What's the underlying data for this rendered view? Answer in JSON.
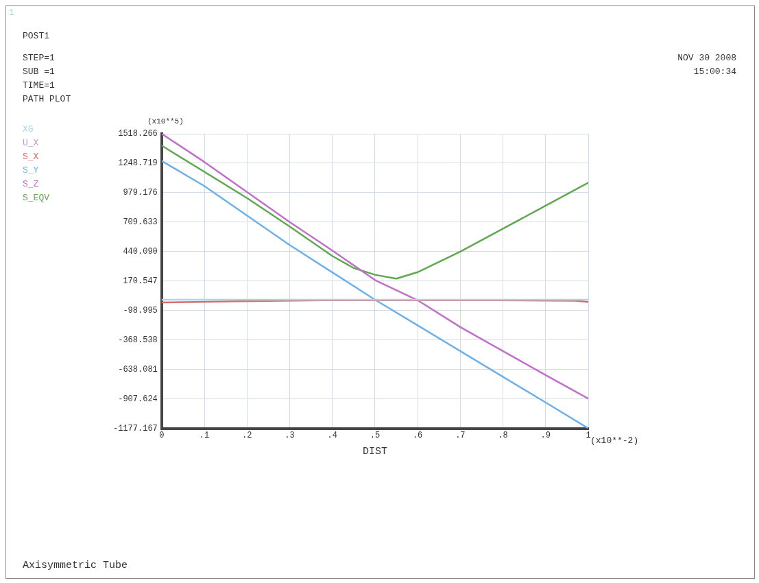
{
  "chart_data": {
    "type": "line",
    "title": "Axisymmetric Tube",
    "xlabel": "DIST",
    "ylabel": "(x10**5)",
    "annotations": [
      "1",
      "POST1",
      "STEP=1",
      "SUB =1",
      "TIME=1",
      "PATH PLOT",
      "NOV 30 2008",
      "15:00:34",
      "(x10**-2)"
    ],
    "x": [
      0,
      0.1,
      0.2,
      0.3,
      0.4,
      0.5,
      0.6,
      0.7,
      0.8,
      0.9,
      1
    ],
    "series": [
      {
        "name": "XG",
        "color": "#a8d8e8",
        "x": [
          0,
          1
        ],
        "values": [
          0,
          0
        ]
      },
      {
        "name": "U_X",
        "color": "#b89ad0",
        "values": [
          null,
          null,
          null,
          null,
          null,
          null,
          null,
          null,
          null,
          null,
          null
        ]
      },
      {
        "name": "S_X",
        "color": "#e06868",
        "x": [
          0,
          0.18,
          0.38,
          0.78,
          0.97,
          1
        ],
        "values": [
          -25,
          -15,
          -5,
          -5,
          -10,
          -20
        ]
      },
      {
        "name": "S_Y",
        "color": "#70b0e8",
        "values": [
          1270,
          1040,
          770,
          500,
          250,
          0,
          -235,
          -470,
          -705,
          -940,
          -1177
        ]
      },
      {
        "name": "S_Z",
        "color": "#c070c8",
        "values": [
          1518,
          1260,
          985,
          710,
          450,
          180,
          -5,
          -250,
          -470,
          -690,
          -905
        ]
      },
      {
        "name": "S_EQV",
        "color": "#60a850",
        "x": [
          0,
          0.1,
          0.2,
          0.3,
          0.4,
          0.45,
          0.5,
          0.55,
          0.6,
          0.7,
          0.8,
          0.9,
          1
        ],
        "values": [
          1410,
          1170,
          930,
          670,
          400,
          290,
          228,
          193,
          252,
          440,
          650,
          860,
          1070
        ]
      }
    ],
    "xlim": [
      0,
      1
    ],
    "xticks": [
      0,
      {
        "value": 0.1,
        "label": ".1"
      },
      {
        "value": 0.2,
        "label": ".2"
      },
      {
        "value": 0.3,
        "label": ".3"
      },
      {
        "value": 0.4,
        "label": ".4"
      },
      {
        "value": 0.5,
        "label": ".5"
      },
      {
        "value": 0.6,
        "label": ".6"
      },
      {
        "value": 0.7,
        "label": ".7"
      },
      {
        "value": 0.8,
        "label": ".8"
      },
      {
        "value": 0.9,
        "label": ".9"
      },
      1
    ],
    "ylim": [
      -1177.167,
      1518.266
    ],
    "yticks": [
      -1177.167,
      -907.624,
      -638.081,
      -368.538,
      -98.995,
      170.547,
      {
        "value": 440.09,
        "label": "440.090"
      },
      709.633,
      979.176,
      1248.719,
      1518.266
    ],
    "grid": true,
    "legend": "top left",
    "marker": "none",
    "line_style": "solid"
  }
}
